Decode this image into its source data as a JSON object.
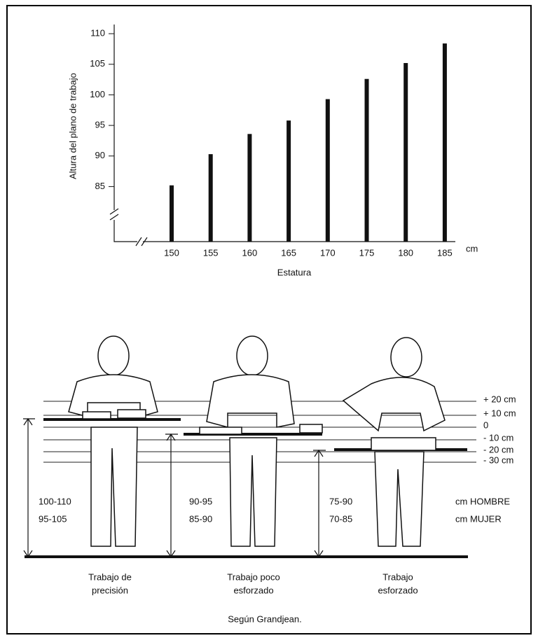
{
  "chart_data": {
    "type": "bar",
    "y_label": "Altura del plano de trabajo",
    "x_label": "Estatura",
    "x_unit": "cm",
    "categories": [
      "150",
      "155",
      "160",
      "165",
      "170",
      "175",
      "180",
      "185"
    ],
    "values": [
      85.2,
      90.3,
      93.6,
      95.8,
      99.3,
      102.6,
      105.2,
      108.4
    ],
    "color": "#111111",
    "ylim": [
      76,
      111.5
    ],
    "yticks": [
      85,
      90,
      95,
      100,
      105,
      110
    ]
  },
  "diagram": {
    "levels": [
      "+ 20 cm",
      "+ 10 cm",
      "0",
      "- 10 cm",
      "- 20 cm",
      "- 30 cm"
    ],
    "stations": [
      {
        "hombre": "100-110",
        "mujer": "95-105",
        "caption": [
          "Trabajo de",
          "precisión"
        ]
      },
      {
        "hombre": "90-95",
        "mujer": "85-90",
        "caption": [
          "Trabajo poco",
          "esforzado"
        ]
      },
      {
        "hombre": "75-90",
        "mujer": "70-85",
        "caption": [
          "Trabajo",
          "esforzado"
        ]
      }
    ],
    "legend": [
      "cm HOMBRE",
      "cm MUJER"
    ],
    "source": "Según Grandjean."
  }
}
